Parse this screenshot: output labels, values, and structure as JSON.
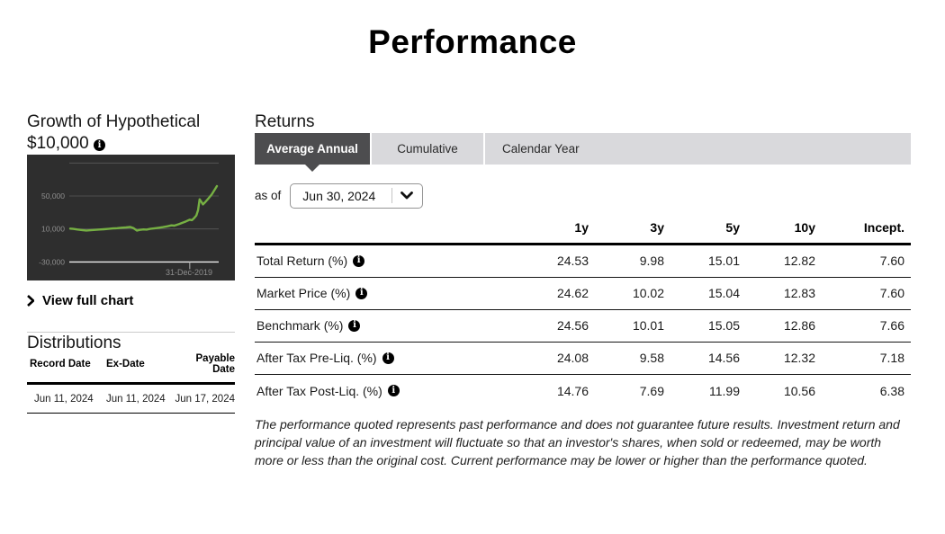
{
  "page": {
    "title": "Performance"
  },
  "growth": {
    "heading": "Growth of Hypothetical $10,000",
    "view_full_chart": "View full chart"
  },
  "chart_data": {
    "type": "line",
    "title": "Growth of Hypothetical $10,000",
    "background": "#2e2e2e",
    "line_color": "#76b043",
    "gridline_color": "#5a5a5a",
    "axis_color": "#ededed",
    "tick_label_color": "#8f8f8f",
    "y_axis_ticks": [
      {
        "label": "50,000",
        "value": 50000
      },
      {
        "label": "10,000",
        "value": 10000
      },
      {
        "label": "-30,000",
        "value": -30000
      }
    ],
    "unlabeled_gridline_value": 90000,
    "x_tick": {
      "label": "31-Dec-2019",
      "frac": 0.815
    },
    "ylim": [
      -30000,
      90000
    ],
    "series": [
      {
        "name": "Hypothetical Growth of $10,000",
        "points": [
          [
            0.0,
            10400
          ],
          [
            0.02,
            10100
          ],
          [
            0.05,
            9400
          ],
          [
            0.08,
            8700
          ],
          [
            0.11,
            8200
          ],
          [
            0.14,
            8500
          ],
          [
            0.17,
            8900
          ],
          [
            0.2,
            9300
          ],
          [
            0.23,
            9700
          ],
          [
            0.26,
            10100
          ],
          [
            0.29,
            10600
          ],
          [
            0.32,
            11000
          ],
          [
            0.35,
            11500
          ],
          [
            0.38,
            11900
          ],
          [
            0.41,
            12400
          ],
          [
            0.43,
            11200
          ],
          [
            0.455,
            8000
          ],
          [
            0.475,
            8900
          ],
          [
            0.5,
            9500
          ],
          [
            0.52,
            9200
          ],
          [
            0.545,
            10100
          ],
          [
            0.57,
            10700
          ],
          [
            0.6,
            11400
          ],
          [
            0.63,
            12200
          ],
          [
            0.66,
            13200
          ],
          [
            0.69,
            14400
          ],
          [
            0.71,
            14000
          ],
          [
            0.74,
            15800
          ],
          [
            0.77,
            17800
          ],
          [
            0.79,
            19300
          ],
          [
            0.815,
            21200
          ],
          [
            0.83,
            20700
          ],
          [
            0.845,
            23200
          ],
          [
            0.86,
            26500
          ],
          [
            0.872,
            33000
          ],
          [
            0.882,
            46000
          ],
          [
            0.892,
            43500
          ],
          [
            0.905,
            39800
          ],
          [
            0.92,
            42500
          ],
          [
            0.945,
            47500
          ],
          [
            0.965,
            52000
          ],
          [
            1.0,
            62000
          ]
        ]
      }
    ]
  },
  "returns": {
    "heading": "Returns",
    "tabs": [
      {
        "label": "Average Annual",
        "selected": true
      },
      {
        "label": "Cumulative",
        "selected": false
      },
      {
        "label": "Calendar Year",
        "selected": false
      }
    ],
    "as_of_label": "as of",
    "as_of_value": "Jun 30, 2024",
    "table": {
      "columns": [
        "1y",
        "3y",
        "5y",
        "10y",
        "Incept."
      ],
      "rows": [
        {
          "label": "Total Return (%)",
          "values": [
            "24.53",
            "9.98",
            "15.01",
            "12.82",
            "7.60"
          ]
        },
        {
          "label": "Market Price (%)",
          "values": [
            "24.62",
            "10.02",
            "15.04",
            "12.83",
            "7.60"
          ]
        },
        {
          "label": "Benchmark (%)",
          "values": [
            "24.56",
            "10.01",
            "15.05",
            "12.86",
            "7.66"
          ]
        },
        {
          "label": "After Tax Pre-Liq. (%)",
          "values": [
            "24.08",
            "9.58",
            "14.56",
            "12.32",
            "7.18"
          ]
        },
        {
          "label": "After Tax Post-Liq. (%)",
          "values": [
            "14.76",
            "7.69",
            "11.99",
            "10.56",
            "6.38"
          ]
        }
      ]
    },
    "disclaimer": "The performance quoted represents past performance and does not guarantee future results. Investment return and principal value of an investment will fluctuate so that an investor's shares, when sold or redeemed, may be worth more or less than the original cost. Current performance may be lower or higher than the performance quoted."
  },
  "distributions": {
    "heading": "Distributions",
    "columns": [
      "Record Date",
      "Ex-Date",
      "Payable Date"
    ],
    "rows": [
      [
        "Jun 11, 2024",
        "Jun 11, 2024",
        "Jun 17, 2024"
      ]
    ]
  }
}
